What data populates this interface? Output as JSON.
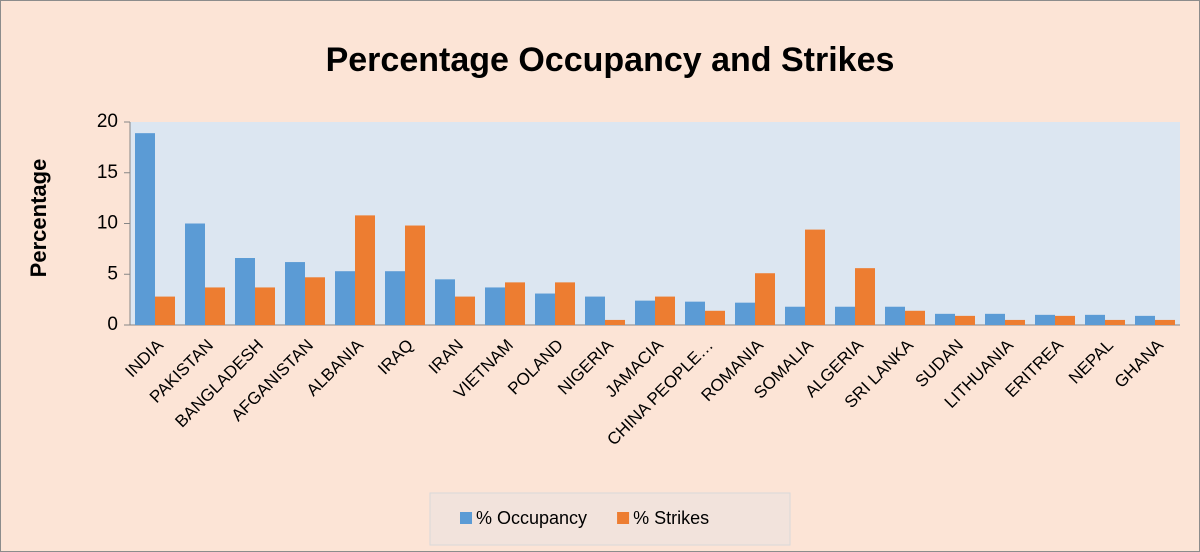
{
  "chart_data": {
    "type": "bar",
    "title": "Percentage Occupancy and Strikes",
    "y_label": "Percentage",
    "categories": [
      "INDIA",
      "PAKISTAN",
      "BANGLADESH",
      "AFGANISTAN",
      "ALBANIA",
      "IRAQ",
      "IRAN",
      "VIETNAM",
      "POLAND",
      "NIGERIA",
      "JAMACIA",
      "CHINA PEOPLE…",
      "ROMANIA",
      "SOMALIA",
      "ALGERIA",
      "SRI LANKA",
      "SUDAN",
      "LITHUANIA",
      "ERITREA",
      "NEPAL",
      "GHANA"
    ],
    "series": [
      {
        "name": "% Occupancy",
        "color": "#5b9bd5",
        "values": [
          18.9,
          10,
          6.6,
          6.2,
          5.3,
          5.3,
          4.5,
          3.7,
          3.1,
          2.8,
          2.4,
          2.3,
          2.2,
          1.8,
          1.8,
          1.8,
          1.1,
          1.1,
          1.0,
          1.0,
          0.9
        ]
      },
      {
        "name": "% Strikes",
        "color": "#ed7d31",
        "values": [
          2.8,
          3.7,
          3.7,
          4.7,
          10.8,
          9.8,
          2.8,
          4.2,
          4.2,
          0.5,
          2.8,
          1.4,
          5.1,
          9.4,
          5.6,
          1.4,
          0.9,
          0.5,
          0.9,
          0.5,
          0.5
        ]
      }
    ],
    "ylim": [
      0,
      20
    ],
    "yticks": [
      0,
      5,
      10,
      15,
      20
    ],
    "grid": false,
    "legend": "bottom"
  }
}
